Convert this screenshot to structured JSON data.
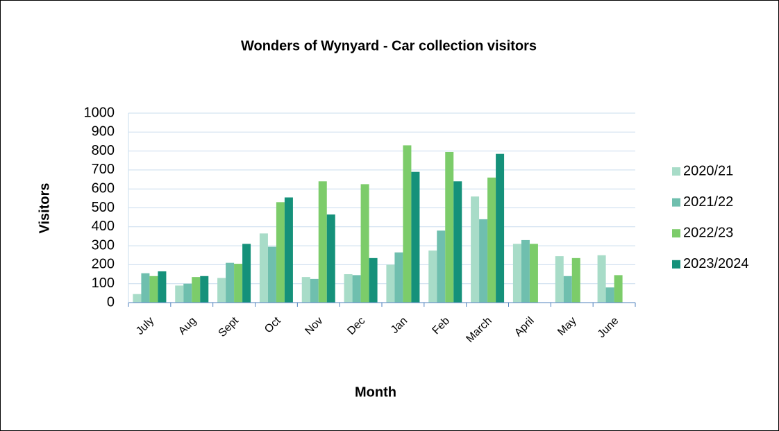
{
  "chart_data": {
    "type": "bar",
    "title": "Wonders of Wynyard - Car collection visitors",
    "x_label": "Month",
    "y_label": "Visitors",
    "categories": [
      "July",
      "Aug",
      "Sept",
      "Oct",
      "Nov",
      "Dec",
      "Jan",
      "Feb",
      "March",
      "April",
      "May",
      "June"
    ],
    "series": [
      {
        "name": "2020/21",
        "color": "#a8dcc8",
        "values": [
          45,
          90,
          130,
          365,
          135,
          150,
          200,
          275,
          560,
          310,
          245,
          250
        ]
      },
      {
        "name": "2021/22",
        "color": "#6fbfae",
        "values": [
          155,
          100,
          210,
          295,
          125,
          145,
          265,
          380,
          440,
          330,
          140,
          80
        ]
      },
      {
        "name": "2022/23",
        "color": "#7ccc6a",
        "values": [
          140,
          135,
          205,
          530,
          640,
          625,
          830,
          795,
          660,
          310,
          235,
          145
        ]
      },
      {
        "name": "2023/2024",
        "color": "#15917a",
        "values": [
          165,
          140,
          310,
          555,
          465,
          235,
          690,
          640,
          785,
          null,
          null,
          null
        ]
      }
    ],
    "ylim": [
      0,
      1000
    ],
    "yticks": [
      0,
      100,
      200,
      300,
      400,
      500,
      600,
      700,
      800,
      900,
      1000
    ],
    "grid": true,
    "legend": "right"
  }
}
